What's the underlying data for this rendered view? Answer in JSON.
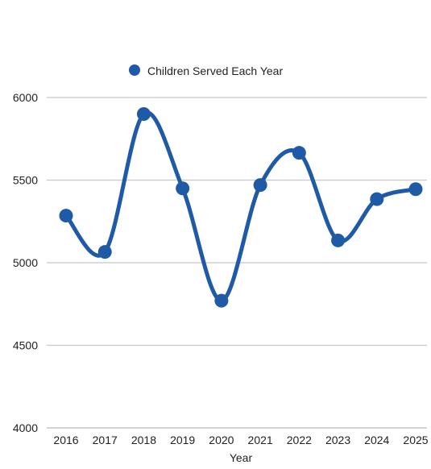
{
  "chart_data": {
    "type": "line",
    "title": "",
    "xlabel": "Year",
    "ylabel": "",
    "categories": [
      "2016",
      "2017",
      "2018",
      "2019",
      "2020",
      "2021",
      "2022",
      "2023",
      "2024",
      "2025"
    ],
    "series": [
      {
        "name": "Children Served Each Year",
        "values": [
          5285,
          5065,
          5900,
          5450,
          4770,
          5470,
          5665,
          5135,
          5385,
          5445
        ],
        "color": "#1f5aa6"
      }
    ],
    "ylim": [
      4000,
      6000
    ],
    "yticks": [
      4000,
      4500,
      5000,
      5500,
      6000
    ],
    "grid": true,
    "legend_position": "top-center",
    "curve": "smooth"
  }
}
